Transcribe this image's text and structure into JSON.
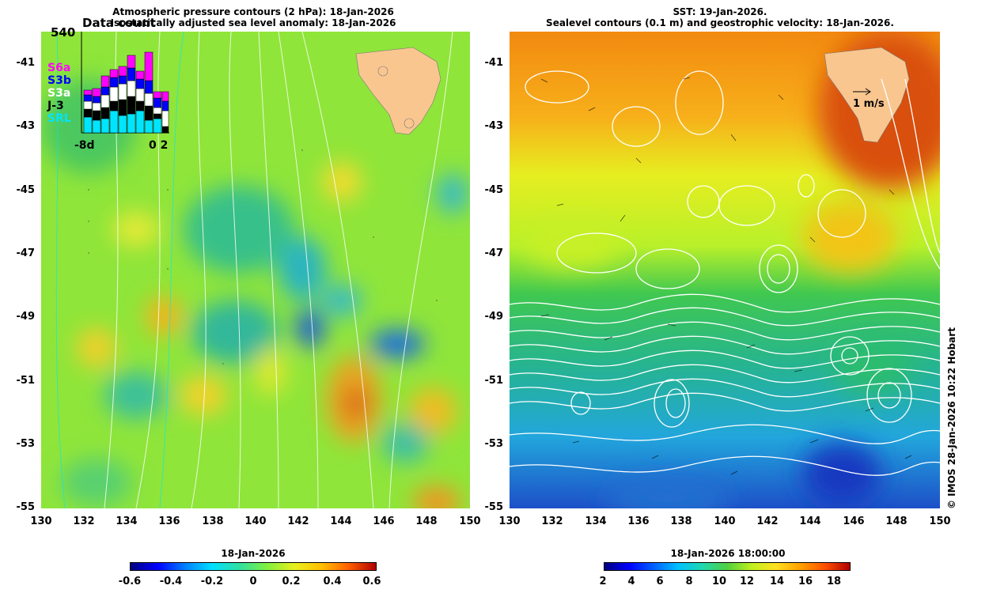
{
  "left_panel": {
    "title_line1": "Atmospheric pressure contours (2 hPa): 18-Jan-2026",
    "title_line2": "Isostatically adjusted sea level anomaly: 18-Jan-2026",
    "y_ticks": [
      "-41",
      "-43",
      "-45",
      "-47",
      "-49",
      "-51",
      "-53",
      "-55"
    ],
    "x_ticks": [
      "130",
      "132",
      "134",
      "136",
      "138",
      "140",
      "142",
      "144",
      "146",
      "148",
      "150"
    ],
    "inset": {
      "title": "Data count",
      "max_label": "540",
      "x_left_label": "-8d",
      "x_right_label": "0 2",
      "legend": [
        {
          "label": "S6a",
          "color": "#ff00ff"
        },
        {
          "label": "S3b",
          "color": "#0000ff"
        },
        {
          "label": "S3a",
          "color": "#ffffff"
        },
        {
          "label": "J-3",
          "color": "#000000"
        },
        {
          "label": "SRL",
          "color": "#00e5ff"
        }
      ]
    },
    "colorbar": {
      "label": "18-Jan-2026",
      "ticks": [
        "-0.6",
        "-0.4",
        "-0.2",
        "0",
        "0.2",
        "0.4",
        "0.6"
      ]
    }
  },
  "right_panel": {
    "title_line1": "SST: 19-Jan-2026.",
    "title_line2": "Sealevel contours (0.1 m) and geostrophic velocity: 18-Jan-2026.",
    "y_ticks": [
      "-41",
      "-43",
      "-45",
      "-47",
      "-49",
      "-51",
      "-53",
      "-55"
    ],
    "x_ticks": [
      "130",
      "132",
      "134",
      "136",
      "138",
      "140",
      "142",
      "144",
      "146",
      "148",
      "150"
    ],
    "velocity_scale_label": "1 m/s",
    "colorbar": {
      "label": "18-Jan-2026 18:00:00",
      "ticks": [
        "2",
        "4",
        "6",
        "8",
        "10",
        "12",
        "14",
        "16",
        "18"
      ]
    }
  },
  "copyright": "© IMOS 28-Jan-2026 10:22 Hobart",
  "colors": {
    "land": "#f9c690",
    "contour": "#ffffff"
  }
}
